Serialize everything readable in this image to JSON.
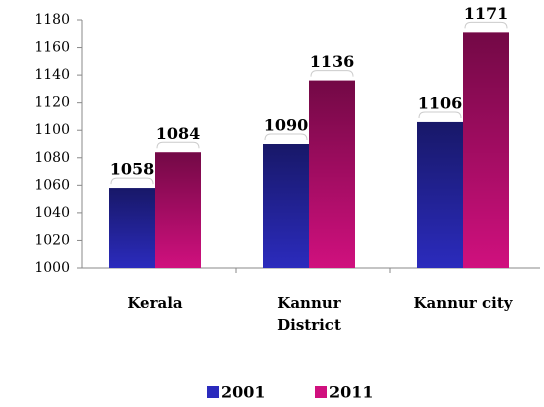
{
  "chart_data": {
    "type": "bar",
    "categories": [
      "Kerala",
      "Kannur District",
      "Kannur city"
    ],
    "series": [
      {
        "name": "2001",
        "color": "#2b2bbd",
        "values": [
          1058,
          1090,
          1106
        ]
      },
      {
        "name": "2011",
        "color": "#d0107e",
        "values": [
          1084,
          1136,
          1171
        ]
      }
    ],
    "ylim": [
      1000,
      1180
    ],
    "yticks": [
      1000,
      1020,
      1040,
      1060,
      1080,
      1100,
      1120,
      1140,
      1160,
      1180
    ],
    "grid": false,
    "legend": "bottom"
  }
}
